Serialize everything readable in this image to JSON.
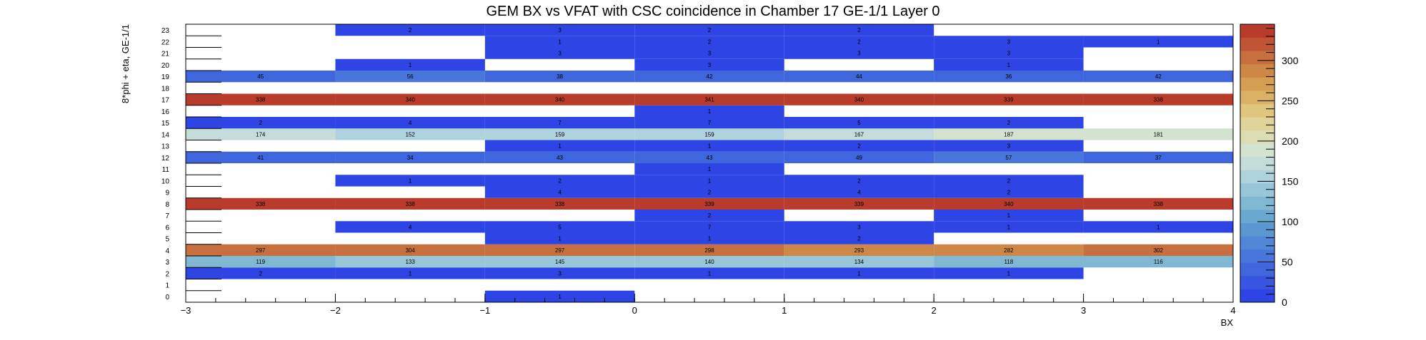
{
  "chart_data": {
    "type": "heatmap",
    "title": "GEM BX vs VFAT with CSC coincidence in Chamber 17 GE-1/1 Layer 0",
    "xlabel": "BX",
    "ylabel": "8*phi + eta, GE-1/1",
    "x_bins": [
      [
        -3,
        -2
      ],
      [
        -2,
        -1
      ],
      [
        -1,
        0
      ],
      [
        0,
        1
      ],
      [
        1,
        2
      ],
      [
        2,
        3
      ],
      [
        3,
        4
      ]
    ],
    "x_range": [
      -3,
      4
    ],
    "x_ticks": [
      -3,
      -2,
      -1,
      0,
      1,
      2,
      3,
      4
    ],
    "x_tick_labels": [
      "−3",
      "−2",
      "−1",
      "0",
      "1",
      "2",
      "3",
      "4"
    ],
    "y_range": [
      0,
      24
    ],
    "y_tick_labels": [
      "0",
      "1",
      "2",
      "3",
      "4",
      "5",
      "6",
      "7",
      "8",
      "9",
      "10",
      "11",
      "12",
      "13",
      "14",
      "15",
      "16",
      "17",
      "18",
      "19",
      "20",
      "21",
      "22",
      "23"
    ],
    "z_range": [
      0,
      345
    ],
    "colorbar_ticks": [
      0,
      50,
      100,
      150,
      200,
      250,
      300
    ],
    "cells": [
      {
        "x": 0,
        "y": -0.5,
        "value": 1
      },
      {
        "x": 2,
        "y": -2.5,
        "value": 2
      },
      {
        "x": 2,
        "y": -1.5,
        "value": 1
      },
      {
        "x": 2,
        "y": -0.5,
        "value": 3
      },
      {
        "x": 2,
        "y": 0.5,
        "value": 1
      },
      {
        "x": 2,
        "y": 1.5,
        "value": 1
      },
      {
        "x": 2,
        "y": 2.5,
        "value": 1
      },
      {
        "x": 3,
        "y": -2.5,
        "value": 119
      },
      {
        "x": 3,
        "y": -1.5,
        "value": 133
      },
      {
        "x": 3,
        "y": -0.5,
        "value": 145
      },
      {
        "x": 3,
        "y": 0.5,
        "value": 140
      },
      {
        "x": 3,
        "y": 1.5,
        "value": 134
      },
      {
        "x": 3,
        "y": 2.5,
        "value": 118
      },
      {
        "x": 3,
        "y": 3.5,
        "value": 116
      },
      {
        "x": 4,
        "y": -2.5,
        "value": 297
      },
      {
        "x": 4,
        "y": -1.5,
        "value": 304
      },
      {
        "x": 4,
        "y": -0.5,
        "value": 297
      },
      {
        "x": 4,
        "y": 0.5,
        "value": 298
      },
      {
        "x": 4,
        "y": 1.5,
        "value": 293
      },
      {
        "x": 4,
        "y": 2.5,
        "value": 282
      },
      {
        "x": 4,
        "y": 3.5,
        "value": 302
      },
      {
        "x": 5,
        "y": -0.5,
        "value": 1
      },
      {
        "x": 5,
        "y": 0.5,
        "value": 1
      },
      {
        "x": 5,
        "y": 1.5,
        "value": 2
      },
      {
        "x": 6,
        "y": -1.5,
        "value": 4
      },
      {
        "x": 6,
        "y": -0.5,
        "value": 5
      },
      {
        "x": 6,
        "y": 0.5,
        "value": 7
      },
      {
        "x": 6,
        "y": 1.5,
        "value": 3
      },
      {
        "x": 6,
        "y": 2.5,
        "value": 1
      },
      {
        "x": 6,
        "y": 3.5,
        "value": 1
      },
      {
        "x": 7,
        "y": 0.5,
        "value": 2
      },
      {
        "x": 7,
        "y": 2.5,
        "value": 1
      },
      {
        "x": 8,
        "y": -2.5,
        "value": 338
      },
      {
        "x": 8,
        "y": -1.5,
        "value": 338
      },
      {
        "x": 8,
        "y": -0.5,
        "value": 338
      },
      {
        "x": 8,
        "y": 0.5,
        "value": 339
      },
      {
        "x": 8,
        "y": 1.5,
        "value": 339
      },
      {
        "x": 8,
        "y": 2.5,
        "value": 340
      },
      {
        "x": 8,
        "y": 3.5,
        "value": 338
      },
      {
        "x": 9,
        "y": -0.5,
        "value": 4
      },
      {
        "x": 9,
        "y": 0.5,
        "value": 2
      },
      {
        "x": 9,
        "y": 1.5,
        "value": 4
      },
      {
        "x": 9,
        "y": 2.5,
        "value": 2
      },
      {
        "x": 10,
        "y": -1.5,
        "value": 1
      },
      {
        "x": 10,
        "y": -0.5,
        "value": 2
      },
      {
        "x": 10,
        "y": 0.5,
        "value": 1
      },
      {
        "x": 10,
        "y": 1.5,
        "value": 2
      },
      {
        "x": 10,
        "y": 2.5,
        "value": 2
      },
      {
        "x": 11,
        "y": 0.5,
        "value": 1
      },
      {
        "x": 12,
        "y": -2.5,
        "value": 41
      },
      {
        "x": 12,
        "y": -1.5,
        "value": 34
      },
      {
        "x": 12,
        "y": -0.5,
        "value": 43
      },
      {
        "x": 12,
        "y": 0.5,
        "value": 43
      },
      {
        "x": 12,
        "y": 1.5,
        "value": 49
      },
      {
        "x": 12,
        "y": 2.5,
        "value": 57
      },
      {
        "x": 12,
        "y": 3.5,
        "value": 37
      },
      {
        "x": 13,
        "y": -0.5,
        "value": 1
      },
      {
        "x": 13,
        "y": 0.5,
        "value": 1
      },
      {
        "x": 13,
        "y": 1.5,
        "value": 2
      },
      {
        "x": 13,
        "y": 2.5,
        "value": 3
      },
      {
        "x": 14,
        "y": -2.5,
        "value": 174
      },
      {
        "x": 14,
        "y": -1.5,
        "value": 152
      },
      {
        "x": 14,
        "y": -0.5,
        "value": 159
      },
      {
        "x": 14,
        "y": 0.5,
        "value": 159
      },
      {
        "x": 14,
        "y": 1.5,
        "value": 167
      },
      {
        "x": 14,
        "y": 2.5,
        "value": 187
      },
      {
        "x": 14,
        "y": 3.5,
        "value": 181
      },
      {
        "x": 15,
        "y": -2.5,
        "value": 2
      },
      {
        "x": 15,
        "y": -1.5,
        "value": 4
      },
      {
        "x": 15,
        "y": -0.5,
        "value": 7
      },
      {
        "x": 15,
        "y": 0.5,
        "value": 7
      },
      {
        "x": 15,
        "y": 1.5,
        "value": 5
      },
      {
        "x": 15,
        "y": 2.5,
        "value": 2
      },
      {
        "x": 16,
        "y": 0.5,
        "value": 1
      },
      {
        "x": 17,
        "y": -2.5,
        "value": 338
      },
      {
        "x": 17,
        "y": -1.5,
        "value": 340
      },
      {
        "x": 17,
        "y": -0.5,
        "value": 340
      },
      {
        "x": 17,
        "y": 0.5,
        "value": 341
      },
      {
        "x": 17,
        "y": 1.5,
        "value": 340
      },
      {
        "x": 17,
        "y": 2.5,
        "value": 339
      },
      {
        "x": 17,
        "y": 3.5,
        "value": 338
      },
      {
        "x": 19,
        "y": -2.5,
        "value": 45
      },
      {
        "x": 19,
        "y": -1.5,
        "value": 56
      },
      {
        "x": 19,
        "y": -0.5,
        "value": 38
      },
      {
        "x": 19,
        "y": 0.5,
        "value": 42
      },
      {
        "x": 19,
        "y": 1.5,
        "value": 44
      },
      {
        "x": 19,
        "y": 2.5,
        "value": 36
      },
      {
        "x": 19,
        "y": 3.5,
        "value": 42
      },
      {
        "x": 20,
        "y": -1.5,
        "value": 1
      },
      {
        "x": 20,
        "y": 0.5,
        "value": 3
      },
      {
        "x": 20,
        "y": 2.5,
        "value": 1
      },
      {
        "x": 21,
        "y": -0.5,
        "value": 3
      },
      {
        "x": 21,
        "y": 0.5,
        "value": 3
      },
      {
        "x": 21,
        "y": 1.5,
        "value": 3
      },
      {
        "x": 21,
        "y": 2.5,
        "value": 3
      },
      {
        "x": 22,
        "y": -0.5,
        "value": 1
      },
      {
        "x": 22,
        "y": 0.5,
        "value": 2
      },
      {
        "x": 22,
        "y": 1.5,
        "value": 2
      },
      {
        "x": 22,
        "y": 2.5,
        "value": 3
      },
      {
        "x": 22,
        "y": 3.5,
        "value": 1
      },
      {
        "x": 23,
        "y": -1.5,
        "value": 2
      },
      {
        "x": 23,
        "y": -0.5,
        "value": 3
      },
      {
        "x": 23,
        "y": 0.5,
        "value": 2
      },
      {
        "x": 23,
        "y": 1.5,
        "value": 2
      }
    ],
    "palette": [
      "#2f44e4",
      "#3755e1",
      "#3f66dd",
      "#4876da",
      "#5187d6",
      "#5b98d2",
      "#6aa8d0",
      "#80b8d3",
      "#97c6d8",
      "#afd3dc",
      "#c4dddb",
      "#d3e3cf",
      "#ddddb4",
      "#e0d49a",
      "#dfc57e",
      "#dbb265",
      "#d69e53",
      "#cf8748",
      "#c86f3f",
      "#c05536",
      "#b83b2c"
    ]
  }
}
